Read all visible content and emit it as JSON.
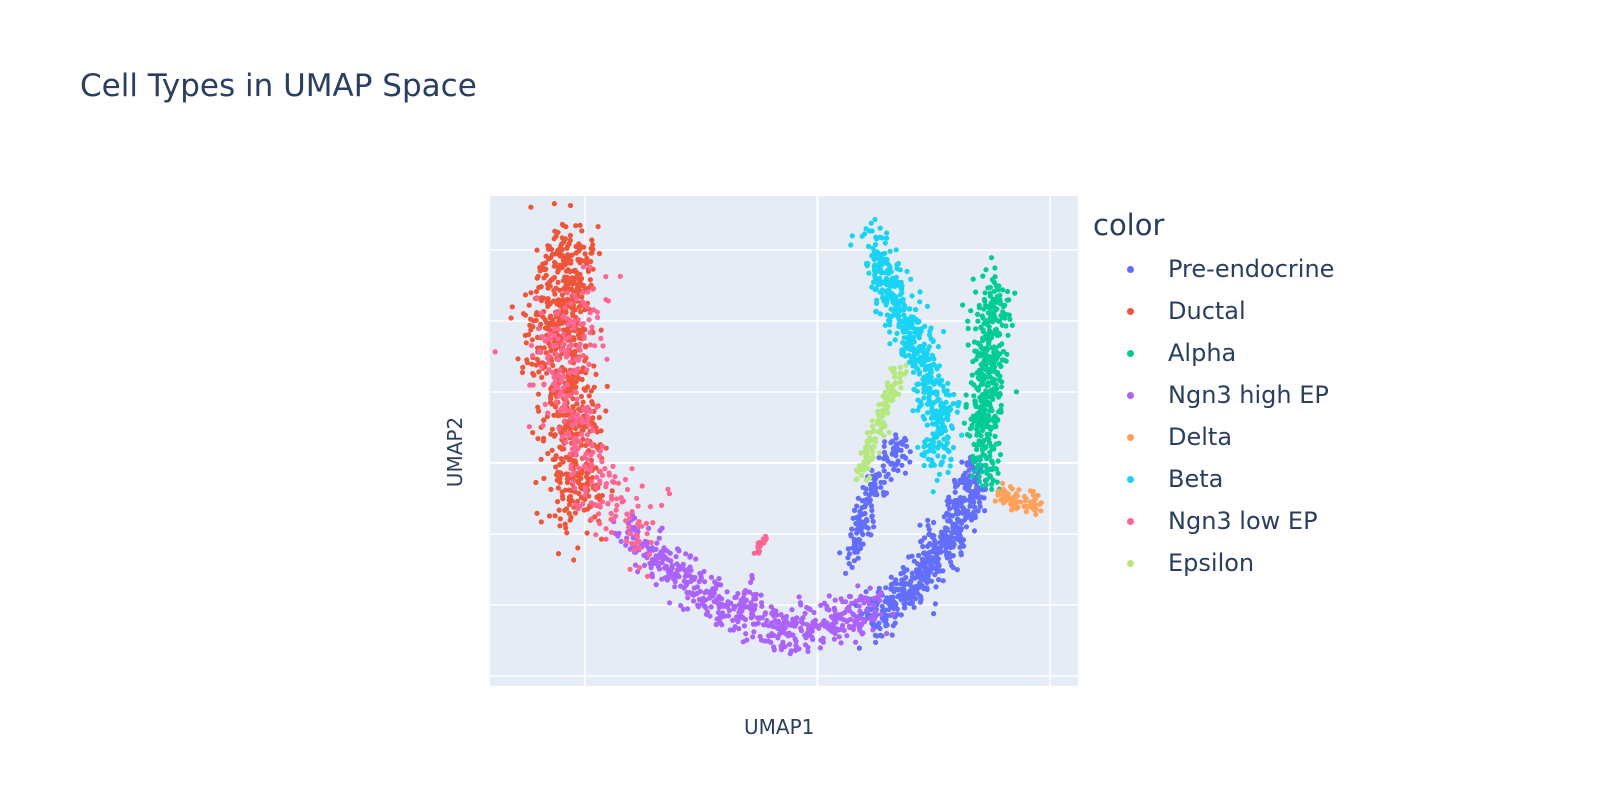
{
  "chart_data": {
    "type": "scatter",
    "title": "Cell Types in UMAP Space",
    "xlabel": "UMAP1",
    "ylabel": "UMAP2",
    "xlim": [
      -2.04,
      10.6
    ],
    "ylim": [
      -0.14,
      6.76
    ],
    "grid": true,
    "tick_labels_shown": false,
    "legend_title": "color",
    "legend_position": "right",
    "series": [
      {
        "name": "Pre-endocrine",
        "color": "#636EFA",
        "count": 520,
        "path": [
          [
            6.1,
            0.8
          ],
          [
            7.2,
            1.35
          ],
          [
            8.05,
            2.2
          ],
          [
            8.4,
            2.9
          ]
        ],
        "spread": 0.28,
        "branch": {
          "count": 160,
          "path": [
            [
              5.7,
              1.6
            ],
            [
              6.1,
              2.5
            ],
            [
              6.8,
              3.3
            ]
          ],
          "spread": 0.2
        }
      },
      {
        "name": "Ductal",
        "color": "#EF553B",
        "count": 760,
        "path": [
          [
            -0.3,
            6.1
          ],
          [
            -0.6,
            5.0
          ],
          [
            -0.5,
            4.3
          ],
          [
            -0.3,
            3.7
          ],
          [
            -0.2,
            3.0
          ],
          [
            -0.2,
            2.4
          ]
        ],
        "spread": 0.55
      },
      {
        "name": "Alpha",
        "color": "#00CC96",
        "count": 420,
        "path": [
          [
            8.8,
            5.45
          ],
          [
            8.7,
            4.6
          ],
          [
            8.6,
            3.6
          ],
          [
            8.6,
            2.9
          ]
        ],
        "spread": 0.3
      },
      {
        "name": "Ngn3 high EP",
        "color": "#AB63FA",
        "count": 560,
        "path": [
          [
            0.86,
            2.05
          ],
          [
            2.47,
            1.2
          ],
          [
            4.4,
            0.65
          ],
          [
            5.7,
            0.8
          ],
          [
            6.3,
            1.07
          ]
        ],
        "spread": 0.28
      },
      {
        "name": "Delta",
        "color": "#FFA15A",
        "count": 70,
        "path": [
          [
            8.9,
            2.55
          ],
          [
            9.75,
            2.4
          ]
        ],
        "spread": 0.12
      },
      {
        "name": "Beta",
        "color": "#19D3F3",
        "count": 520,
        "path": [
          [
            6.2,
            6.15
          ],
          [
            6.55,
            5.3
          ],
          [
            7.2,
            4.6
          ],
          [
            7.6,
            3.75
          ],
          [
            7.6,
            3.05
          ]
        ],
        "spread": 0.3
      },
      {
        "name": "Ngn3 low EP",
        "color": "#FF6692",
        "count": 300,
        "path": [
          [
            0.3,
            5.2
          ],
          [
            -0.7,
            4.5
          ],
          [
            0.0,
            3.0
          ],
          [
            0.8,
            2.3
          ],
          [
            1.4,
            1.9
          ]
        ],
        "spread": 0.45,
        "branch": {
          "count": 20,
          "path": [
            [
              3.7,
              1.75
            ],
            [
              3.85,
              1.95
            ]
          ],
          "spread": 0.06
        }
      },
      {
        "name": "Epsilon",
        "color": "#B6E880",
        "count": 130,
        "path": [
          [
            6.8,
            4.3
          ],
          [
            6.35,
            3.6
          ],
          [
            5.9,
            2.75
          ]
        ],
        "spread": 0.15
      }
    ]
  }
}
